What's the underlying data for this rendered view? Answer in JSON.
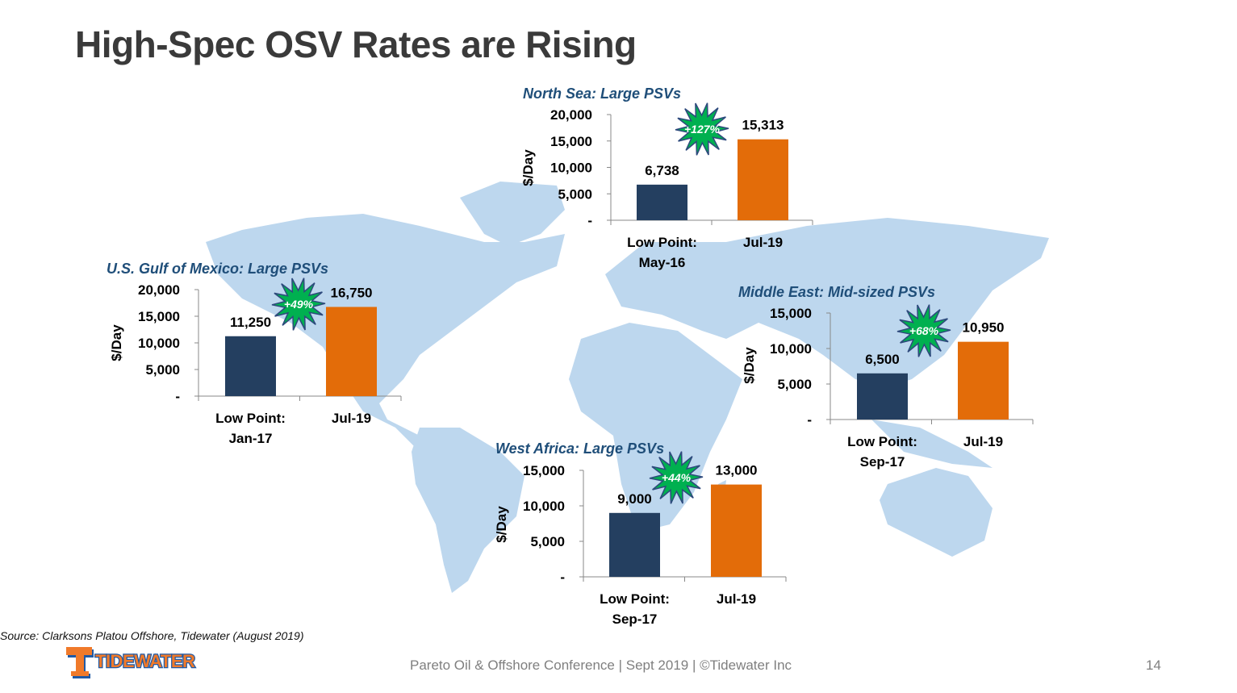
{
  "title": "High-Spec OSV Rates are Rising",
  "source": "Source:  Clarksons Platou Offshore, Tidewater (August 2019)",
  "footer": "Pareto Oil & Offshore Conference | Sept 2019 | ©Tidewater Inc",
  "page_number": "14",
  "logo_text": "TIDEWATER",
  "colors": {
    "low": "#243f60",
    "current": "#e36c09",
    "badge": "#00b050",
    "map": "#bdd7ee",
    "title": "#1f4e79"
  },
  "chart_data": [
    {
      "id": "north-sea",
      "type": "bar",
      "title": "North Sea: Large PSVs",
      "ylabel": "$/Day",
      "ylim": [
        0,
        20000
      ],
      "yticks": [
        "-",
        "5,000",
        "10,000",
        "15,000",
        "20,000"
      ],
      "categories": [
        [
          "Low Point:",
          "May-16"
        ],
        [
          "Jul-19"
        ]
      ],
      "values": [
        6738,
        15313
      ],
      "value_labels": [
        "6,738",
        "15,313"
      ],
      "change": "+127%"
    },
    {
      "id": "gulf-of-mexico",
      "type": "bar",
      "title": "U.S. Gulf of Mexico: Large PSVs",
      "ylabel": "$/Day",
      "ylim": [
        0,
        20000
      ],
      "yticks": [
        "-",
        "5,000",
        "10,000",
        "15,000",
        "20,000"
      ],
      "categories": [
        [
          "Low Point:",
          "Jan-17"
        ],
        [
          "Jul-19"
        ]
      ],
      "values": [
        11250,
        16750
      ],
      "value_labels": [
        "11,250",
        "16,750"
      ],
      "change": "+49%"
    },
    {
      "id": "middle-east",
      "type": "bar",
      "title": "Middle East: Mid-sized PSVs",
      "ylabel": "$/Day",
      "ylim": [
        0,
        15000
      ],
      "yticks": [
        "-",
        "5,000",
        "10,000",
        "15,000"
      ],
      "categories": [
        [
          "Low Point:",
          "Sep-17"
        ],
        [
          "Jul-19"
        ]
      ],
      "values": [
        6500,
        10950
      ],
      "value_labels": [
        "6,500",
        "10,950"
      ],
      "change": "+68%"
    },
    {
      "id": "west-africa",
      "type": "bar",
      "title": "West Africa: Large PSVs",
      "ylabel": "$/Day",
      "ylim": [
        0,
        15000
      ],
      "yticks": [
        "-",
        "5,000",
        "10,000",
        "15,000"
      ],
      "categories": [
        [
          "Low Point:",
          "Sep-17"
        ],
        [
          "Jul-19"
        ]
      ],
      "values": [
        9000,
        13000
      ],
      "value_labels": [
        "9,000",
        "13,000"
      ],
      "change": "+44%"
    }
  ]
}
